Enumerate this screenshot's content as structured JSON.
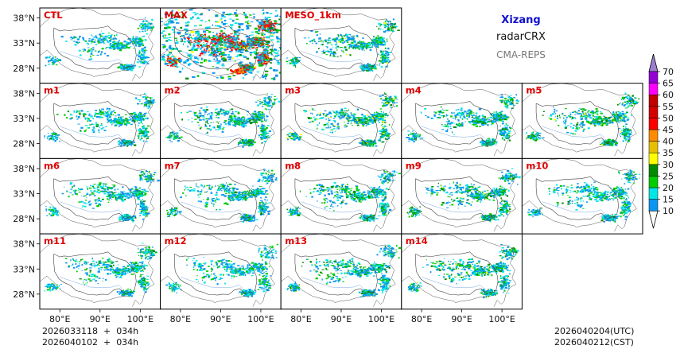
{
  "header": {
    "region": "Xizang",
    "product": "radarCRX",
    "system": "CMA-REPS"
  },
  "panels": [
    {
      "id": "CTL",
      "intensity": 0.75
    },
    {
      "id": "MAX",
      "intensity": 1.9
    },
    {
      "id": "MESO_1km",
      "intensity": 0.9
    },
    {
      "id": "m1",
      "intensity": 0.8
    },
    {
      "id": "m2",
      "intensity": 0.85
    },
    {
      "id": "m3",
      "intensity": 0.95
    },
    {
      "id": "m4",
      "intensity": 0.85
    },
    {
      "id": "m5",
      "intensity": 0.9
    },
    {
      "id": "m6",
      "intensity": 0.8
    },
    {
      "id": "m7",
      "intensity": 0.8
    },
    {
      "id": "m8",
      "intensity": 0.85
    },
    {
      "id": "m9",
      "intensity": 0.9
    },
    {
      "id": "m10",
      "intensity": 0.8
    },
    {
      "id": "m11",
      "intensity": 0.8
    },
    {
      "id": "m12",
      "intensity": 0.75
    },
    {
      "id": "m13",
      "intensity": 0.85
    },
    {
      "id": "m14",
      "intensity": 0.9
    }
  ],
  "axes": {
    "lat_labels": [
      "38°N",
      "33°N",
      "28°N"
    ],
    "lon_labels": [
      "80°E",
      "90°E",
      "100°E"
    ]
  },
  "colorbar": {
    "levels": [
      "10",
      "15",
      "20",
      "25",
      "30",
      "35",
      "40",
      "45",
      "50",
      "55",
      "60",
      "65",
      "70"
    ],
    "colors": [
      "#0a96f0",
      "#00e6e6",
      "#00cd00",
      "#008c00",
      "#ffff00",
      "#e6c000",
      "#ff8c00",
      "#ff0000",
      "#d40000",
      "#c00000",
      "#ff00ff",
      "#9400d4",
      "#9d7fd0"
    ],
    "under_color": "#ffffff",
    "over_color": "#9d7fd0"
  },
  "footer": {
    "init_line1": "2026033118  +  034h",
    "init_line2": "2026040102  +  034h",
    "valid_utc": "2026040204(UTC)",
    "valid_cst": "2026040212(CST)"
  }
}
